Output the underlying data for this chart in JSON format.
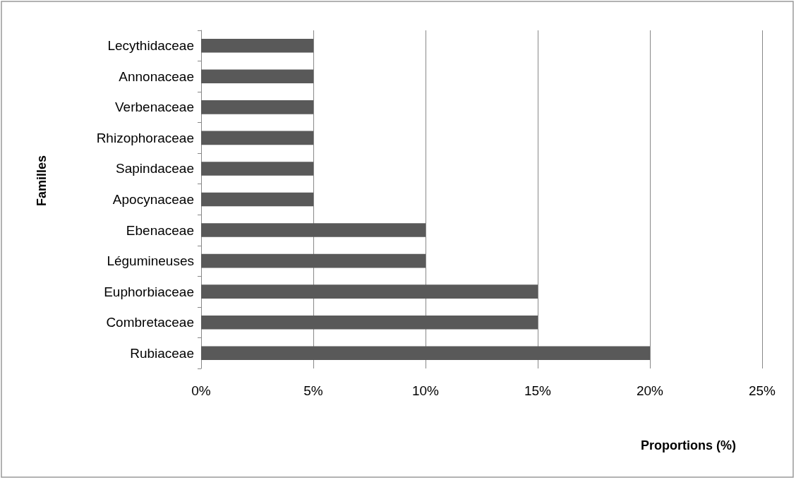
{
  "chart_data": {
    "type": "bar",
    "orientation": "horizontal",
    "xlabel": "Proportions (%)",
    "ylabel": "Familles",
    "categories": [
      "Lecythidaceae",
      "Annonaceae",
      "Verbenaceae",
      "Rhizophoraceae",
      "Sapindaceae",
      "Apocynaceae",
      "Ebenaceae",
      "Légumineuses",
      "Euphorbiaceae",
      "Combretaceae",
      "Rubiaceae"
    ],
    "values": [
      5,
      5,
      5,
      5,
      5,
      5,
      10,
      10,
      15,
      15,
      20
    ],
    "color": "#595959",
    "xlim": [
      0,
      25
    ],
    "xticks": [
      {
        "value": 0,
        "label": "0%"
      },
      {
        "value": 5,
        "label": "5%"
      },
      {
        "value": 10,
        "label": "10%"
      },
      {
        "value": 15,
        "label": "15%"
      },
      {
        "value": 20,
        "label": "20%"
      },
      {
        "value": 25,
        "label": "25%"
      }
    ],
    "grid": "x"
  }
}
